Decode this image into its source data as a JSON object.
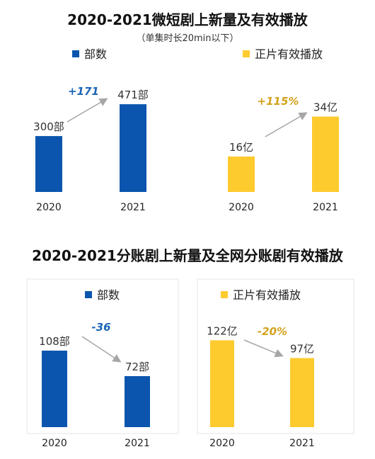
{
  "section1": {
    "title": "2020-2021微短剧上新量及有效播放",
    "subtitle": "（单集时长20min以下）"
  },
  "section2": {
    "title": "2020-2021分账剧上新量及全网分账剧有效播放"
  },
  "colors": {
    "blue": "#0B55AE",
    "yellow": "#FECB2E",
    "blue_change": "#1A64B8",
    "yellow_change": "#D3A21C",
    "arrow": "#A6A6A6"
  },
  "chart_data": [
    {
      "type": "bar",
      "legend": "部数",
      "categories": [
        "2020",
        "2021"
      ],
      "values": [
        300,
        471
      ],
      "labels": [
        "300部",
        "471部"
      ],
      "change": "+171",
      "color": "#0B55AE",
      "change_color": "#1A64B8"
    },
    {
      "type": "bar",
      "legend": "正片有效播放",
      "categories": [
        "2020",
        "2021"
      ],
      "values": [
        16,
        34
      ],
      "labels": [
        "16亿",
        "34亿"
      ],
      "change": "+115%",
      "color": "#FECB2E",
      "change_color": "#D3A21C"
    },
    {
      "type": "bar",
      "legend": "部数",
      "categories": [
        "2020",
        "2021"
      ],
      "values": [
        108,
        72
      ],
      "labels": [
        "108部",
        "72部"
      ],
      "change": "-36",
      "color": "#0B55AE",
      "change_color": "#1A64B8"
    },
    {
      "type": "bar",
      "legend": "正片有效播放",
      "categories": [
        "2020",
        "2021"
      ],
      "values": [
        122,
        97
      ],
      "labels": [
        "122亿",
        "97亿"
      ],
      "change": "-20%",
      "color": "#FECB2E",
      "change_color": "#D3A21C"
    }
  ]
}
